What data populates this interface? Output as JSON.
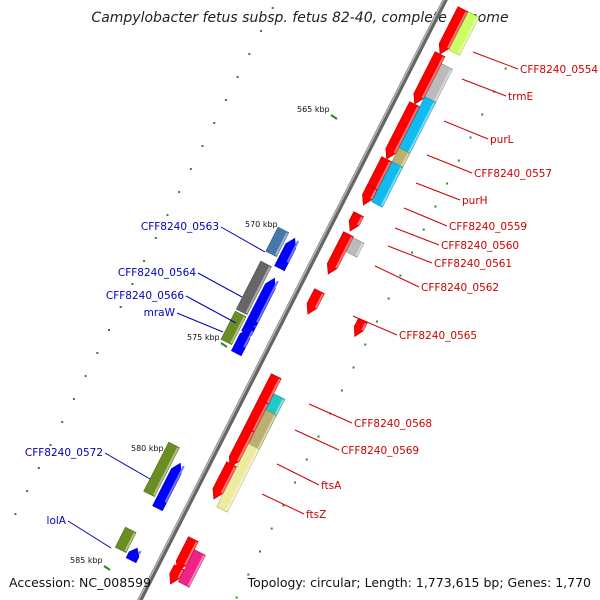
{
  "title": "Campylobacter fetus subsp. fetus 82-40, complete genome",
  "accession": "Accession: NC_008599",
  "topology": "Topology: circular; Length: 1,773,615 bp; Genes: 1,770",
  "ticks": [
    "565 kbp",
    "570 kbp",
    "575 kbp",
    "580 kbp",
    "585 kbp"
  ],
  "labels_forward": [
    "CFF8240_0554",
    "trmE",
    "purL",
    "CFF8240_0557",
    "purH",
    "CFF8240_0559",
    "CFF8240_0560",
    "CFF8240_0561",
    "CFF8240_0562",
    "CFF8240_0565",
    "CFF8240_0568",
    "CFF8240_0569",
    "ftsA",
    "ftsZ"
  ],
  "labels_reverse": [
    "CFF8240_0563",
    "CFF8240_0564",
    "CFF8240_0566",
    "mraW",
    "CFF8240_0572",
    "lolA"
  ],
  "colors": {
    "forward_cds": "#ff0000",
    "reverse_cds": "#0000ff",
    "forward_label": "#cc0000",
    "reverse_label": "#0000bb",
    "backbone": "#777777",
    "ticks": "#2a8a2a",
    "cog_grey": "#bbbbbb",
    "cog_cyan": "#11bbee",
    "cog_khaki": "#bbb070",
    "cog_olive": "#6b8e23",
    "cog_dark_grey": "#666666",
    "cog_teal": "#22c8c8",
    "cog_pale_yellow": "#eeeaa0",
    "cog_magenta": "#ee2288",
    "cog_lime": "#ccff66",
    "cog_steel": "#4477aa"
  }
}
